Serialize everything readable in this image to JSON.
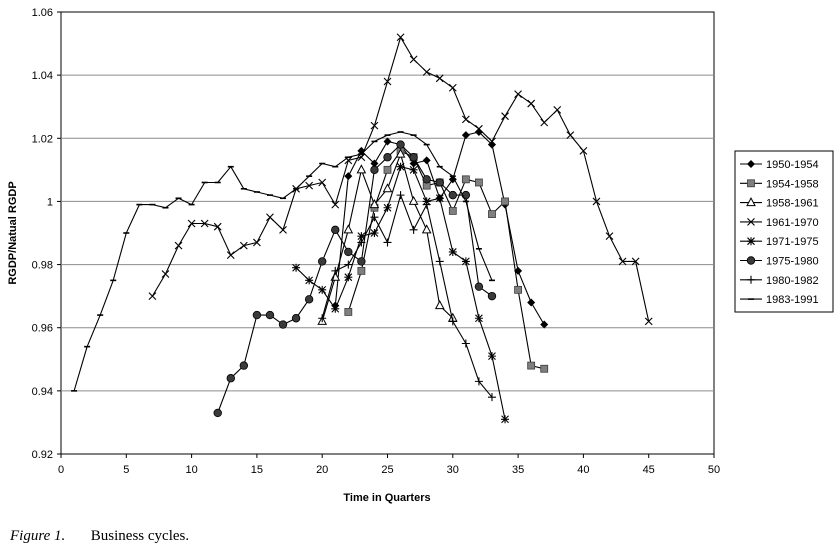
{
  "caption": {
    "figure_label": "Figure 1.",
    "text": "Business cycles."
  },
  "chart_data": {
    "type": "line",
    "title": "",
    "xlabel": "Time in Quarters",
    "ylabel": "RGDP/Natual RGDP",
    "xlim": [
      0,
      50
    ],
    "ylim": [
      0.92,
      1.06
    ],
    "xticks": [
      0,
      5,
      10,
      15,
      20,
      25,
      30,
      35,
      40,
      45,
      50
    ],
    "yticks": [
      0.92,
      0.94,
      0.96,
      0.98,
      1,
      1.02,
      1.04,
      1.06
    ],
    "ytick_labels": [
      "0.92",
      "0.94",
      "0.96",
      "0.98",
      "1",
      "1.02",
      "1.04",
      "1.06"
    ],
    "grid": "horizontal",
    "legend_position": "right",
    "series": [
      {
        "name": "1950-1954",
        "marker": "diamond",
        "points": [
          [
            21,
            0.967
          ],
          [
            22,
            1.008
          ],
          [
            23,
            1.016
          ],
          [
            24,
            1.012
          ],
          [
            25,
            1.019
          ],
          [
            26,
            1.018
          ],
          [
            27,
            1.012
          ],
          [
            28,
            1.013
          ],
          [
            29,
            1.001
          ],
          [
            30,
            1.007
          ],
          [
            31,
            1.021
          ],
          [
            32,
            1.022
          ],
          [
            33,
            1.018
          ],
          [
            34,
            0.999
          ],
          [
            35,
            0.978
          ],
          [
            36,
            0.968
          ],
          [
            37,
            0.961
          ]
        ]
      },
      {
        "name": "1954-1958",
        "marker": "square",
        "points": [
          [
            22,
            0.965
          ],
          [
            23,
            0.978
          ],
          [
            24,
            0.998
          ],
          [
            25,
            1.01
          ],
          [
            26,
            1.016
          ],
          [
            27,
            1.014
          ],
          [
            28,
            1.005
          ],
          [
            29,
            1.006
          ],
          [
            30,
            0.997
          ],
          [
            31,
            1.007
          ],
          [
            32,
            1.006
          ],
          [
            33,
            0.996
          ],
          [
            34,
            1.0
          ],
          [
            35,
            0.972
          ],
          [
            36,
            0.948
          ],
          [
            37,
            0.947
          ]
        ]
      },
      {
        "name": "1958-1961",
        "marker": "triangle",
        "points": [
          [
            20,
            0.962
          ],
          [
            21,
            0.976
          ],
          [
            22,
            0.991
          ],
          [
            23,
            1.01
          ],
          [
            24,
            0.999
          ],
          [
            25,
            1.004
          ],
          [
            26,
            1.015
          ],
          [
            27,
            1.0
          ],
          [
            28,
            0.991
          ],
          [
            29,
            0.967
          ],
          [
            30,
            0.963
          ]
        ]
      },
      {
        "name": "1961-1970",
        "marker": "x",
        "points": [
          [
            7,
            0.97
          ],
          [
            8,
            0.977
          ],
          [
            9,
            0.986
          ],
          [
            10,
            0.993
          ],
          [
            11,
            0.993
          ],
          [
            12,
            0.992
          ],
          [
            13,
            0.983
          ],
          [
            14,
            0.986
          ],
          [
            15,
            0.987
          ],
          [
            16,
            0.995
          ],
          [
            17,
            0.991
          ],
          [
            18,
            1.004
          ],
          [
            19,
            1.005
          ],
          [
            20,
            1.006
          ],
          [
            21,
            0.999
          ],
          [
            22,
            1.013
          ],
          [
            23,
            1.014
          ],
          [
            24,
            1.024
          ],
          [
            25,
            1.038
          ],
          [
            26,
            1.052
          ],
          [
            27,
            1.045
          ],
          [
            28,
            1.041
          ],
          [
            29,
            1.039
          ],
          [
            30,
            1.036
          ],
          [
            31,
            1.026
          ],
          [
            32,
            1.023
          ],
          [
            33,
            1.019
          ],
          [
            34,
            1.027
          ],
          [
            35,
            1.034
          ],
          [
            36,
            1.031
          ],
          [
            37,
            1.025
          ],
          [
            38,
            1.029
          ],
          [
            39,
            1.021
          ],
          [
            40,
            1.016
          ],
          [
            41,
            1.0
          ],
          [
            42,
            0.989
          ],
          [
            43,
            0.981
          ],
          [
            44,
            0.981
          ],
          [
            45,
            0.962
          ]
        ]
      },
      {
        "name": "1971-1975",
        "marker": "asterisk",
        "points": [
          [
            18,
            0.979
          ],
          [
            19,
            0.975
          ],
          [
            20,
            0.972
          ],
          [
            21,
            0.966
          ],
          [
            22,
            0.976
          ],
          [
            23,
            0.989
          ],
          [
            24,
            0.99
          ],
          [
            25,
            0.998
          ],
          [
            26,
            1.011
          ],
          [
            27,
            1.01
          ],
          [
            28,
            1.0
          ],
          [
            29,
            1.001
          ],
          [
            30,
            0.984
          ],
          [
            31,
            0.981
          ],
          [
            32,
            0.963
          ],
          [
            33,
            0.951
          ],
          [
            34,
            0.931
          ]
        ]
      },
      {
        "name": "1975-1980",
        "marker": "circle",
        "points": [
          [
            12,
            0.933
          ],
          [
            13,
            0.944
          ],
          [
            14,
            0.948
          ],
          [
            15,
            0.964
          ],
          [
            16,
            0.964
          ],
          [
            17,
            0.961
          ],
          [
            18,
            0.963
          ],
          [
            19,
            0.969
          ],
          [
            20,
            0.981
          ],
          [
            21,
            0.991
          ],
          [
            22,
            0.984
          ],
          [
            23,
            0.981
          ],
          [
            24,
            1.01
          ],
          [
            25,
            1.014
          ],
          [
            26,
            1.018
          ],
          [
            27,
            1.014
          ],
          [
            28,
            1.007
          ],
          [
            29,
            1.006
          ],
          [
            30,
            1.002
          ],
          [
            31,
            1.002
          ],
          [
            32,
            0.973
          ],
          [
            33,
            0.97
          ]
        ]
      },
      {
        "name": "1980-1982",
        "marker": "plus",
        "points": [
          [
            20,
            0.963
          ],
          [
            21,
            0.978
          ],
          [
            22,
            0.98
          ],
          [
            23,
            0.987
          ],
          [
            24,
            0.995
          ],
          [
            25,
            0.987
          ],
          [
            26,
            1.002
          ],
          [
            27,
            0.991
          ],
          [
            28,
            0.999
          ],
          [
            29,
            0.981
          ],
          [
            30,
            0.962
          ],
          [
            31,
            0.955
          ],
          [
            32,
            0.943
          ],
          [
            33,
            0.938
          ]
        ]
      },
      {
        "name": "1983-1991",
        "marker": "dash",
        "points": [
          [
            1,
            0.94
          ],
          [
            2,
            0.954
          ],
          [
            3,
            0.964
          ],
          [
            4,
            0.975
          ],
          [
            5,
            0.99
          ],
          [
            6,
            0.999
          ],
          [
            7,
            0.999
          ],
          [
            8,
            0.998
          ],
          [
            9,
            1.001
          ],
          [
            10,
            0.999
          ],
          [
            11,
            1.006
          ],
          [
            12,
            1.006
          ],
          [
            13,
            1.011
          ],
          [
            14,
            1.004
          ],
          [
            15,
            1.003
          ],
          [
            16,
            1.002
          ],
          [
            17,
            1.001
          ],
          [
            18,
            1.004
          ],
          [
            19,
            1.008
          ],
          [
            20,
            1.012
          ],
          [
            21,
            1.011
          ],
          [
            22,
            1.014
          ],
          [
            23,
            1.015
          ],
          [
            24,
            1.019
          ],
          [
            25,
            1.021
          ],
          [
            26,
            1.022
          ],
          [
            27,
            1.021
          ],
          [
            28,
            1.018
          ],
          [
            29,
            1.011
          ],
          [
            30,
            1.008
          ],
          [
            31,
            1.0
          ],
          [
            32,
            0.985
          ],
          [
            33,
            0.975
          ]
        ]
      }
    ]
  }
}
